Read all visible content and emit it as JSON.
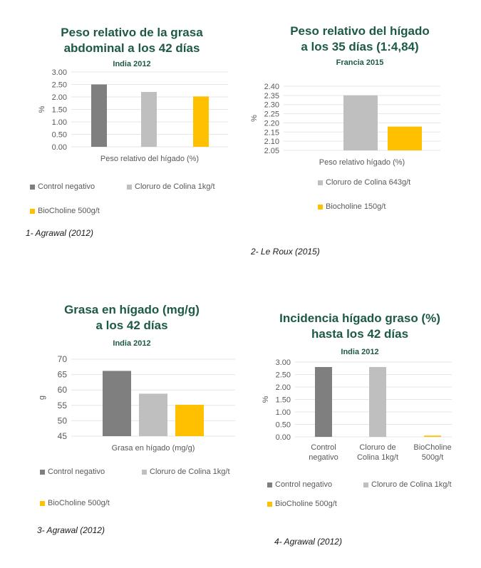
{
  "colors": {
    "control_negativo": "#7f7f7f",
    "cloruro_de_colina": "#bfbfbf",
    "biocholine": "#ffc000",
    "title": "#1d5a43",
    "axis_text": "#595959",
    "grid": "#e7e6e6"
  },
  "chart_data": [
    {
      "type": "bar",
      "title": [
        "Peso relativo de la grasa",
        "abdominal a los 42 días"
      ],
      "subtitle": "India 2012",
      "ylabel": "%",
      "xlabel": "Peso relativo del hígado (%)",
      "ylim": [
        0,
        3
      ],
      "yticks": [
        "3.00",
        "2.50",
        "2.00",
        "1.50",
        "1.00",
        "0.50",
        "0.00"
      ],
      "grid": true,
      "legend_position": "bottom",
      "series": [
        {
          "name": "Control negativo",
          "color": "#7f7f7f",
          "values": [
            2.5
          ]
        },
        {
          "name": "Cloruro de Colina 1kg/t",
          "color": "#bfbfbf",
          "values": [
            2.2
          ]
        },
        {
          "name": "BioCholine 500g/t",
          "color": "#ffc000",
          "values": [
            2.02
          ]
        }
      ],
      "caption": "1- Agrawal (2012)"
    },
    {
      "type": "bar",
      "title": [
        "Peso relativo del hígado",
        "a los 35 días (1:4,84)"
      ],
      "subtitle": "Francia 2015",
      "ylabel": "%",
      "xlabel": "Peso relativo hígado (%)",
      "ylim": [
        2.05,
        2.4
      ],
      "yticks": [
        "2.40",
        "2.35",
        "2.30",
        "2.25",
        "2.20",
        "2.15",
        "2.10",
        "2.05"
      ],
      "grid": true,
      "legend_position": "bottom",
      "series": [
        {
          "name": "Cloruro de Colina 643g/t",
          "color": "#bfbfbf",
          "values": [
            2.35
          ]
        },
        {
          "name": "Biocholine 150g/t",
          "color": "#ffc000",
          "values": [
            2.18
          ]
        }
      ],
      "caption": "2- Le Roux (2015)"
    },
    {
      "type": "bar",
      "title": [
        "Grasa en hígado (mg/g)",
        "a los 42 días"
      ],
      "subtitle": "India 2012",
      "ylabel": "g",
      "xlabel": "Grasa en hígado (mg/g)",
      "ylim": [
        45,
        70
      ],
      "yticks": [
        "70",
        "65",
        "60",
        "55",
        "50",
        "45"
      ],
      "grid": true,
      "legend_position": "bottom",
      "series": [
        {
          "name": "Control negativo",
          "color": "#7f7f7f",
          "values": [
            66.2
          ]
        },
        {
          "name": "Cloruro de Colina 1kg/t",
          "color": "#bfbfbf",
          "values": [
            58.8
          ]
        },
        {
          "name": "BioCholine 500g/t",
          "color": "#ffc000",
          "values": [
            55.2
          ]
        }
      ],
      "caption": "3- Agrawal (2012)"
    },
    {
      "type": "bar",
      "title": [
        "Incidencia hígado graso (%)",
        "hasta los 42 días"
      ],
      "subtitle": "India 2012",
      "ylabel": "%",
      "categories": [
        [
          "Control",
          "negativo"
        ],
        [
          "Cloruro de",
          "Colina 1kg/t"
        ],
        [
          "BioCholine",
          "500g/t"
        ]
      ],
      "values": [
        2.8,
        2.8,
        0.05
      ],
      "ylim": [
        0,
        3
      ],
      "yticks": [
        "3.00",
        "2.50",
        "2.00",
        "1.50",
        "1.00",
        "0.50",
        "0.00"
      ],
      "grid": true,
      "legend_position": "bottom",
      "series": [
        {
          "name": "Control negativo",
          "color": "#7f7f7f"
        },
        {
          "name": "Cloruro de Colina 1kg/t",
          "color": "#bfbfbf"
        },
        {
          "name": "BioCholine 500g/t",
          "color": "#ffc000"
        }
      ],
      "caption": "4- Agrawal (2012)"
    }
  ]
}
